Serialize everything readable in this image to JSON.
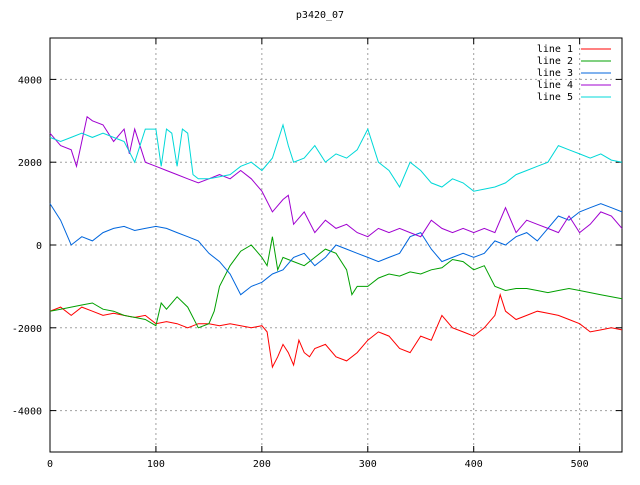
{
  "chart_data": {
    "type": "line",
    "title": "p3420_07",
    "xlabel": "",
    "ylabel": "",
    "xlim": [
      0,
      540
    ],
    "ylim": [
      -5000,
      5000
    ],
    "xticks": [
      0,
      100,
      200,
      300,
      400,
      500
    ],
    "yticks": [
      -4000,
      -2000,
      0,
      2000,
      4000
    ],
    "grid": true,
    "legend_position": "top-right",
    "series": [
      {
        "name": "line 1",
        "color": "#ff0000",
        "x": [
          0,
          10,
          20,
          30,
          40,
          50,
          60,
          70,
          80,
          90,
          100,
          110,
          120,
          130,
          140,
          150,
          160,
          170,
          180,
          190,
          200,
          205,
          210,
          215,
          220,
          225,
          230,
          235,
          240,
          245,
          250,
          260,
          270,
          280,
          290,
          300,
          310,
          320,
          330,
          340,
          350,
          360,
          370,
          380,
          390,
          400,
          410,
          420,
          425,
          430,
          440,
          450,
          460,
          470,
          480,
          490,
          500,
          510,
          520,
          530,
          540
        ],
        "y": [
          -1600,
          -1500,
          -1700,
          -1500,
          -1600,
          -1700,
          -1650,
          -1700,
          -1750,
          -1700,
          -1900,
          -1850,
          -1900,
          -2000,
          -1900,
          -1900,
          -1950,
          -1900,
          -1950,
          -2000,
          -1950,
          -2100,
          -2950,
          -2700,
          -2400,
          -2600,
          -2900,
          -2300,
          -2600,
          -2700,
          -2500,
          -2400,
          -2700,
          -2800,
          -2600,
          -2300,
          -2100,
          -2200,
          -2500,
          -2600,
          -2200,
          -2300,
          -1700,
          -2000,
          -2100,
          -2200,
          -2000,
          -1700,
          -1200,
          -1600,
          -1800,
          -1700,
          -1600,
          -1650,
          -1700,
          -1800,
          -1900,
          -2100,
          -2050,
          -2000,
          -2050
        ]
      },
      {
        "name": "line 2",
        "color": "#00a000",
        "x": [
          0,
          10,
          20,
          30,
          40,
          50,
          60,
          70,
          80,
          90,
          100,
          105,
          110,
          120,
          130,
          140,
          150,
          155,
          160,
          170,
          180,
          190,
          200,
          205,
          210,
          215,
          220,
          230,
          240,
          250,
          260,
          270,
          280,
          285,
          290,
          300,
          310,
          320,
          330,
          340,
          350,
          360,
          370,
          380,
          390,
          400,
          410,
          420,
          430,
          440,
          450,
          460,
          470,
          480,
          490,
          500,
          510,
          520,
          530,
          540
        ],
        "y": [
          -1600,
          -1550,
          -1500,
          -1450,
          -1400,
          -1550,
          -1600,
          -1700,
          -1750,
          -1800,
          -1950,
          -1400,
          -1550,
          -1250,
          -1500,
          -2000,
          -1900,
          -1600,
          -1000,
          -500,
          -150,
          0,
          -300,
          -500,
          200,
          -600,
          -300,
          -400,
          -500,
          -300,
          -100,
          -200,
          -600,
          -1200,
          -1000,
          -1000,
          -800,
          -700,
          -750,
          -650,
          -700,
          -600,
          -550,
          -350,
          -400,
          -600,
          -500,
          -1000,
          -1100,
          -1050,
          -1050,
          -1100,
          -1150,
          -1100,
          -1050,
          -1100,
          -1150,
          -1200,
          -1250,
          -1300
        ]
      },
      {
        "name": "line 3",
        "color": "#0066dd",
        "x": [
          0,
          10,
          20,
          30,
          40,
          50,
          60,
          70,
          80,
          90,
          100,
          110,
          120,
          130,
          140,
          150,
          160,
          170,
          180,
          190,
          200,
          210,
          220,
          230,
          240,
          250,
          260,
          270,
          280,
          290,
          300,
          310,
          320,
          330,
          340,
          350,
          360,
          370,
          380,
          390,
          400,
          410,
          420,
          430,
          440,
          450,
          460,
          470,
          480,
          490,
          500,
          510,
          520,
          530,
          540
        ],
        "y": [
          1000,
          600,
          0,
          200,
          100,
          300,
          400,
          450,
          350,
          400,
          450,
          400,
          300,
          200,
          100,
          -200,
          -400,
          -700,
          -1200,
          -1000,
          -900,
          -700,
          -600,
          -300,
          -200,
          -500,
          -300,
          0,
          -100,
          -200,
          -300,
          -400,
          -300,
          -200,
          200,
          300,
          -100,
          -400,
          -300,
          -200,
          -300,
          -200,
          100,
          0,
          200,
          300,
          100,
          400,
          700,
          600,
          800,
          900,
          1000,
          900,
          800
        ]
      },
      {
        "name": "line 4",
        "color": "#a000d0",
        "x": [
          0,
          10,
          20,
          25,
          30,
          35,
          40,
          50,
          60,
          70,
          75,
          80,
          90,
          100,
          110,
          120,
          130,
          140,
          150,
          160,
          170,
          175,
          180,
          190,
          200,
          210,
          220,
          225,
          230,
          240,
          250,
          260,
          270,
          280,
          290,
          300,
          310,
          320,
          330,
          340,
          350,
          360,
          370,
          380,
          390,
          400,
          410,
          420,
          430,
          440,
          450,
          460,
          470,
          480,
          490,
          500,
          510,
          520,
          530,
          540
        ],
        "y": [
          2700,
          2400,
          2300,
          1900,
          2500,
          3100,
          3000,
          2900,
          2500,
          2800,
          2200,
          2800,
          2000,
          1900,
          1800,
          1700,
          1600,
          1500,
          1600,
          1700,
          1600,
          1700,
          1800,
          1600,
          1300,
          800,
          1100,
          1200,
          500,
          800,
          300,
          600,
          400,
          500,
          300,
          200,
          400,
          300,
          400,
          300,
          200,
          600,
          400,
          300,
          400,
          300,
          400,
          300,
          900,
          300,
          600,
          500,
          400,
          300,
          700,
          300,
          500,
          800,
          700,
          400
        ]
      },
      {
        "name": "line 5",
        "color": "#00d8d8",
        "x": [
          0,
          10,
          20,
          30,
          40,
          50,
          60,
          70,
          80,
          90,
          100,
          105,
          110,
          115,
          120,
          125,
          130,
          135,
          140,
          150,
          160,
          170,
          180,
          190,
          200,
          210,
          220,
          225,
          230,
          240,
          250,
          260,
          270,
          280,
          290,
          300,
          310,
          320,
          330,
          340,
          350,
          360,
          370,
          380,
          390,
          400,
          410,
          420,
          430,
          440,
          450,
          460,
          470,
          480,
          490,
          500,
          510,
          520,
          530,
          540
        ],
        "y": [
          2600,
          2500,
          2600,
          2700,
          2600,
          2700,
          2600,
          2500,
          2000,
          2800,
          2800,
          1900,
          2800,
          2700,
          1900,
          2800,
          2700,
          1700,
          1600,
          1600,
          1650,
          1700,
          1900,
          2000,
          1800,
          2100,
          2900,
          2400,
          2000,
          2100,
          2400,
          2000,
          2200,
          2100,
          2300,
          2800,
          2000,
          1800,
          1400,
          2000,
          1800,
          1500,
          1400,
          1600,
          1500,
          1300,
          1350,
          1400,
          1500,
          1700,
          1800,
          1900,
          2000,
          2400,
          2300,
          2200,
          2100,
          2200,
          2050,
          2000
        ]
      }
    ]
  }
}
